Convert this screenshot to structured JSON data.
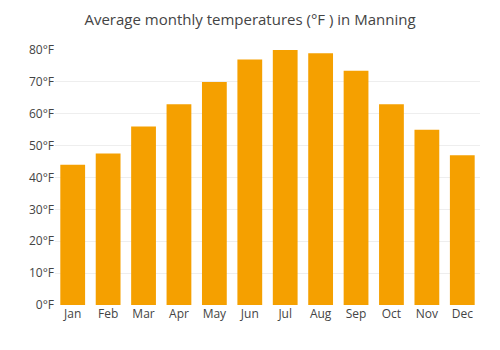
{
  "chart_data": {
    "type": "bar",
    "title": "Average monthly temperatures (°F ) in Manning",
    "categories": [
      "Jan",
      "Feb",
      "Mar",
      "Apr",
      "May",
      "Jun",
      "Jul",
      "Aug",
      "Sep",
      "Oct",
      "Nov",
      "Dec"
    ],
    "values": [
      44,
      47.5,
      56,
      63,
      70,
      77,
      80,
      79,
      73.5,
      63,
      55,
      47
    ],
    "color": "#F5A000",
    "ylim": [
      0,
      80
    ],
    "yticks": [
      {
        "value": 0,
        "label": "0°F"
      },
      {
        "value": 10,
        "label": "10°F"
      },
      {
        "value": 20,
        "label": "20°F"
      },
      {
        "value": 30,
        "label": "30°F"
      },
      {
        "value": 40,
        "label": "40°F"
      },
      {
        "value": 50,
        "label": "50°F"
      },
      {
        "value": 60,
        "label": "60°F"
      },
      {
        "value": 70,
        "label": "70°F"
      },
      {
        "value": 80,
        "label": "80°F"
      }
    ],
    "grid": true
  }
}
